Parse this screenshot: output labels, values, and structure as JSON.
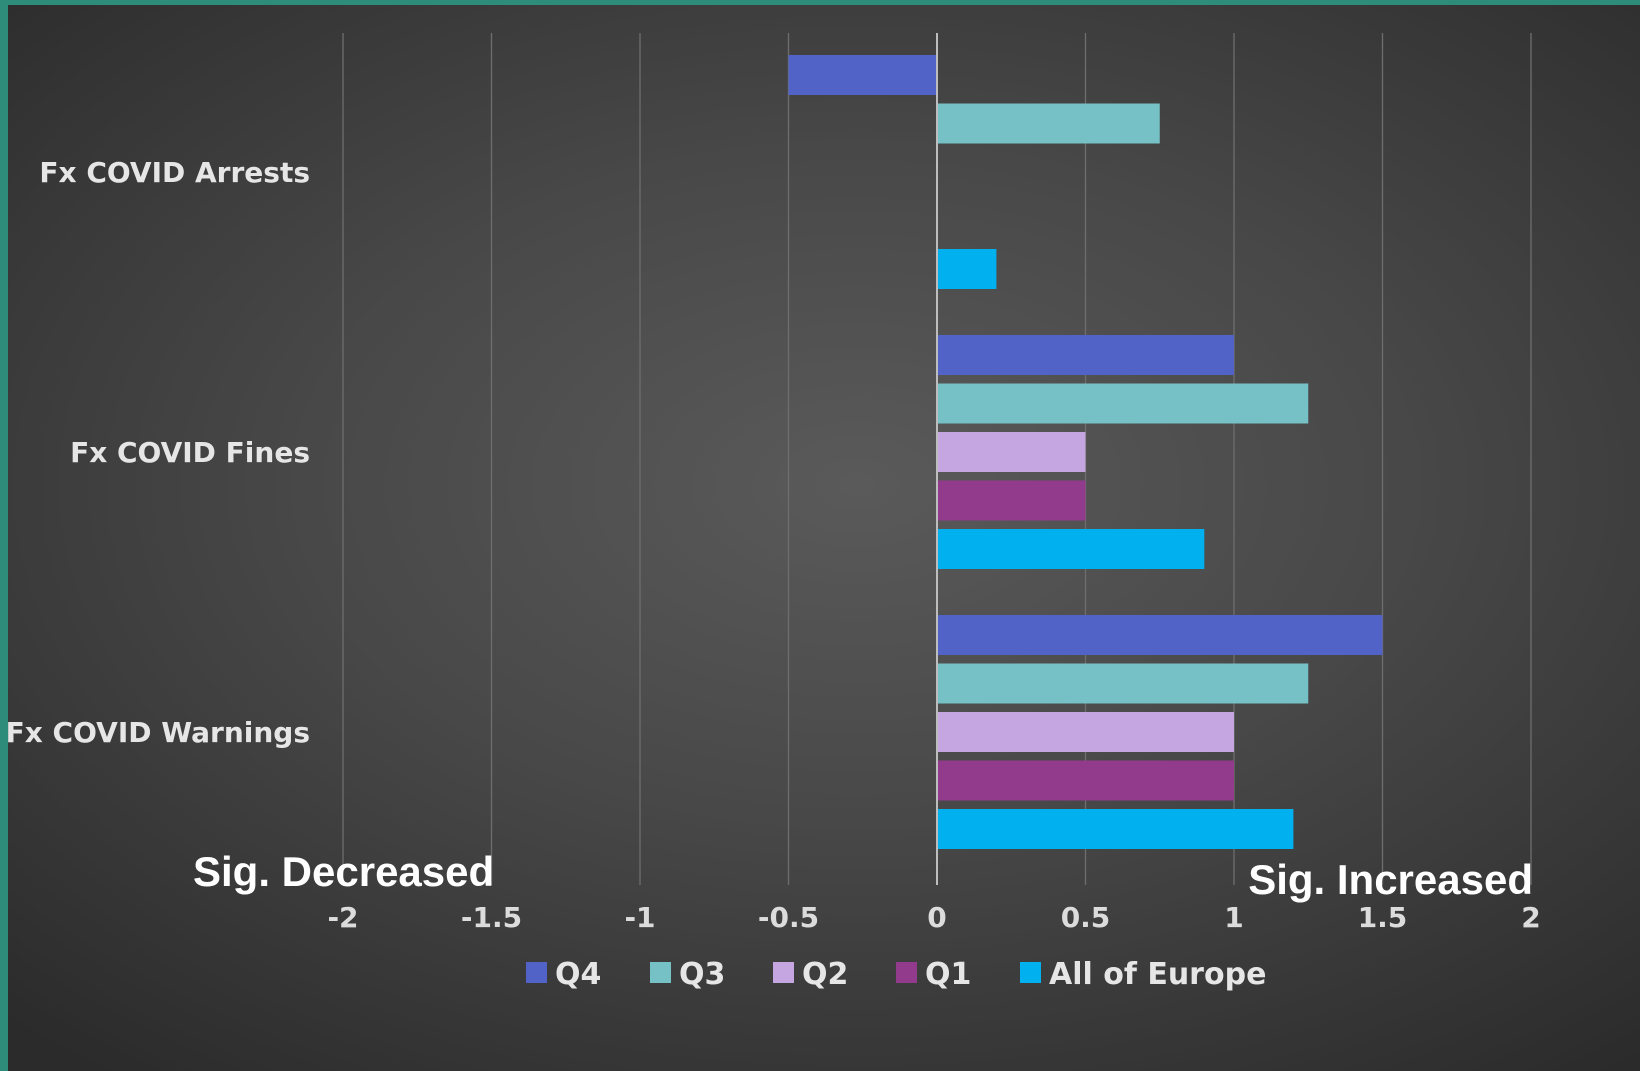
{
  "colors": {
    "gridline": "#6e6e6e",
    "zero_line": "#bdbdbd"
  },
  "chart_data": {
    "type": "bar",
    "orientation": "horizontal",
    "categories": [
      "Fx COVID Arrests",
      "Fx COVID Fines",
      "Fx COVID Warnings"
    ],
    "series": [
      {
        "name": "Q4",
        "color": "#5163c7",
        "values": [
          -0.5,
          1.0,
          1.5
        ]
      },
      {
        "name": "Q3",
        "color": "#76c1c6",
        "values": [
          0.75,
          1.25,
          1.25
        ]
      },
      {
        "name": "Q2",
        "color": "#c6a6e0",
        "values": [
          null,
          0.5,
          1.0
        ]
      },
      {
        "name": "Q1",
        "color": "#923b8d",
        "values": [
          null,
          0.5,
          1.0
        ]
      },
      {
        "name": "All of Europe",
        "color": "#00b0ef",
        "values": [
          0.2,
          0.9,
          1.2
        ]
      }
    ],
    "xlim": [
      -2,
      2
    ],
    "x_ticks": [
      -2,
      -1.5,
      -1,
      -0.5,
      0,
      0.5,
      1,
      1.5,
      2
    ],
    "tick_labels": [
      "-2",
      "-1.5",
      "-1",
      "-0.5",
      "0",
      "0.5",
      "1",
      "1.5",
      "2"
    ],
    "grid": true,
    "legend_position": "bottom",
    "annotations": {
      "left": "Sig. Decreased",
      "right": "Sig. Increased"
    }
  }
}
